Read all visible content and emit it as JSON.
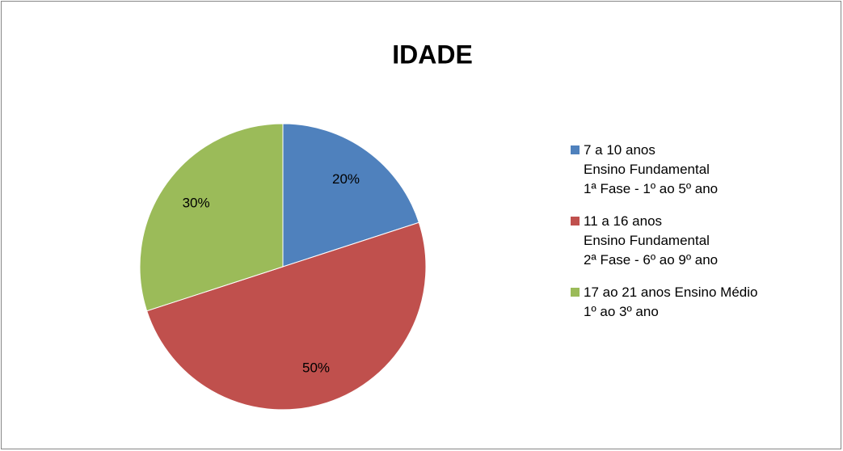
{
  "chart_data": {
    "type": "pie",
    "title": "IDADE",
    "categories": [
      "7 a 10 anos\nEnsino Fundamental\n1ª Fase - 1º ao 5º ano",
      "11 a 16 anos\nEnsino Fundamental\n2ª Fase - 6º ao 9º ano",
      "17 ao 21 anos Ensino Médio\n1º ao 3º ano"
    ],
    "values": [
      20,
      50,
      30
    ],
    "value_labels": [
      "20%",
      "50%",
      "30%"
    ],
    "colors": [
      "#4f81bd",
      "#c0504d",
      "#9bbb59"
    ],
    "legend": "right"
  }
}
